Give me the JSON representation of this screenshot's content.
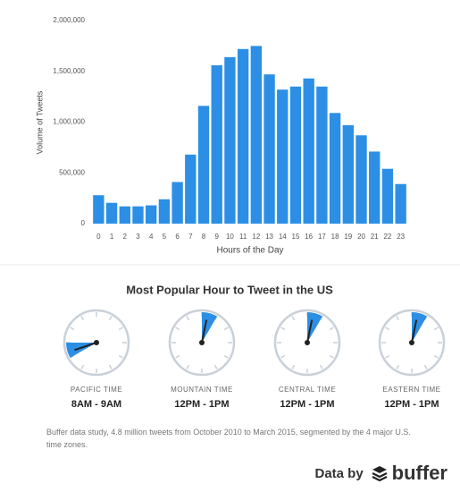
{
  "chart_data": {
    "type": "bar",
    "categories": [
      "0",
      "1",
      "2",
      "3",
      "4",
      "5",
      "6",
      "7",
      "8",
      "9",
      "10",
      "11",
      "12",
      "13",
      "14",
      "15",
      "16",
      "17",
      "18",
      "19",
      "20",
      "21",
      "22",
      "23"
    ],
    "values": [
      280000,
      205000,
      170000,
      170000,
      180000,
      240000,
      410000,
      680000,
      1160000,
      1560000,
      1640000,
      1720000,
      1750000,
      1470000,
      1320000,
      1350000,
      1430000,
      1350000,
      1090000,
      970000,
      870000,
      710000,
      540000,
      390000
    ],
    "color": "#2c8fe5",
    "x_label": "Hours of the Day",
    "y_label": "Volume of Tweets",
    "ylim": [
      0,
      2000000
    ],
    "yticks": [
      0,
      {
        "value": 500000,
        "label": "500,000"
      },
      {
        "value": 1000000,
        "label": "1,000,000"
      },
      {
        "value": 1500000,
        "label": "1,500,000"
      },
      {
        "value": 2000000,
        "label": "2,000,000"
      }
    ],
    "grid": false
  },
  "clocks": {
    "title": "Most Popular Hour to Tweet in the US",
    "items": [
      {
        "zone": "PACIFIC TIME",
        "time": "8AM - 9AM",
        "hours": [
          8,
          9
        ]
      },
      {
        "zone": "MOUNTAIN TIME",
        "time": "12PM - 1PM",
        "hours": [
          12,
          13
        ]
      },
      {
        "zone": "CENTRAL TIME",
        "time": "12PM - 1PM",
        "hours": [
          12,
          13
        ]
      },
      {
        "zone": "EASTERN TIME",
        "time": "12PM - 1PM",
        "hours": [
          12,
          13
        ]
      }
    ]
  },
  "footer": {
    "note": "Buffer data study, 4.8 million tweets from October 2010 to March 2015, segmented by the 4 major U.S. time zones.",
    "credit": "Data by",
    "brand": "buffer"
  }
}
